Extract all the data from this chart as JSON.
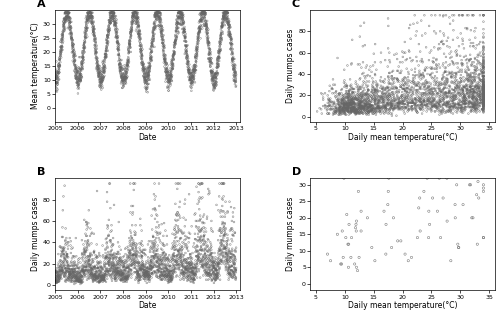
{
  "panel_A": {
    "label": "A",
    "xlabel": "Date",
    "ylabel": "Mean temperature(°C)",
    "ylim": [
      -5,
      35
    ],
    "yticks": [
      0,
      5,
      10,
      15,
      20,
      25,
      30
    ]
  },
  "panel_B": {
    "label": "B",
    "xlabel": "Date",
    "ylabel": "Daily mumps cases",
    "ylim": [
      -5,
      100
    ],
    "yticks": [
      0,
      20,
      40,
      60,
      80
    ]
  },
  "panel_C": {
    "label": "C",
    "xlabel": "Daily mean temperature(°C)",
    "ylabel": "Daily mumps cases",
    "xlim": [
      4,
      36
    ],
    "ylim": [
      -5,
      100
    ],
    "yticks": [
      0,
      20,
      40,
      60,
      80
    ],
    "xticks": [
      5,
      10,
      15,
      20,
      25,
      30,
      35
    ]
  },
  "panel_D": {
    "label": "D",
    "xlabel": "Daily mean temperature(°C)",
    "ylabel": "Daily mumps cases",
    "xlim": [
      4,
      36
    ],
    "ylim": [
      -2,
      32
    ],
    "yticks": [
      0,
      5,
      10,
      15,
      20,
      25,
      30
    ],
    "xticks": [
      5,
      10,
      15,
      20,
      25,
      30,
      35
    ]
  },
  "marker_size": 1.5,
  "marker_color": "#666666",
  "linewidth": 0.4,
  "background_color": "#ffffff",
  "label_fontsize": 5.5,
  "tick_fontsize": 4.5,
  "panel_label_fontsize": 8
}
